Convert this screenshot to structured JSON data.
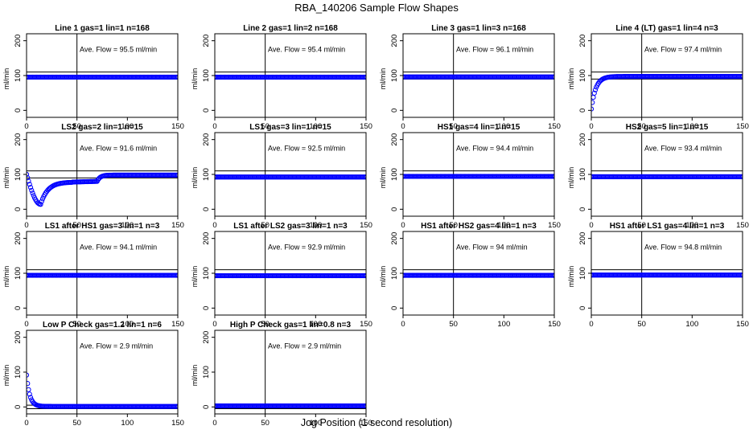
{
  "title": "RBA_140206  Sample Flow Shapes",
  "xlabel": "Jog Position (1 second resolution)",
  "chart_data": [
    {
      "type": "scatter",
      "title": "Line 1 gas=1 lin=1 n=168",
      "ylabel": "ml/min",
      "annotation": "Ave. Flow =  95.5  ml/min",
      "xlim": [
        0,
        150
      ],
      "ylim": [
        -20,
        220
      ],
      "xticks": [
        0,
        50,
        100,
        150
      ],
      "yticks": [
        0,
        100,
        200
      ],
      "vline": 50,
      "hlines": [
        90,
        110
      ],
      "shape": "flat",
      "level": 95.5
    },
    {
      "type": "scatter",
      "title": "Line 2 gas=1 lin=2 n=168",
      "ylabel": "ml/min",
      "annotation": "Ave. Flow =  95.4  ml/min",
      "xlim": [
        0,
        150
      ],
      "ylim": [
        -20,
        220
      ],
      "xticks": [
        0,
        50,
        100,
        150
      ],
      "yticks": [
        0,
        100,
        200
      ],
      "vline": 50,
      "hlines": [
        90,
        110
      ],
      "shape": "flat",
      "level": 95.4
    },
    {
      "type": "scatter",
      "title": "Line 3 gas=1 lin=3 n=168",
      "ylabel": "ml/min",
      "annotation": "Ave. Flow =  96.1  ml/min",
      "xlim": [
        0,
        150
      ],
      "ylim": [
        -20,
        220
      ],
      "xticks": [
        0,
        50,
        100,
        150
      ],
      "yticks": [
        0,
        100,
        200
      ],
      "vline": 50,
      "hlines": [
        90,
        110
      ],
      "shape": "flat",
      "level": 96.1
    },
    {
      "type": "scatter",
      "title": "Line 4 (LT) gas=1 lin=4 n=3",
      "ylabel": "ml/min",
      "annotation": "Ave. Flow =  97.4  ml/min",
      "xlim": [
        0,
        150
      ],
      "ylim": [
        -20,
        220
      ],
      "xticks": [
        0,
        50,
        100,
        150
      ],
      "yticks": [
        0,
        100,
        200
      ],
      "vline": 50,
      "hlines": [
        90,
        110
      ],
      "shape": "rise",
      "level": 97.4
    },
    {
      "type": "scatter",
      "title": "LS2 gas=2 lin=1 n=15",
      "ylabel": "ml/min",
      "annotation": "Ave. Flow =  91.6  ml/min",
      "xlim": [
        0,
        150
      ],
      "ylim": [
        -20,
        220
      ],
      "xticks": [
        0,
        50,
        100,
        150
      ],
      "yticks": [
        0,
        100,
        200
      ],
      "vline": 50,
      "hlines": [
        90,
        110
      ],
      "shape": "dip",
      "level": 91.6
    },
    {
      "type": "scatter",
      "title": "LS1 gas=3 lin=1 n=15",
      "ylabel": "ml/min",
      "annotation": "Ave. Flow =  92.5  ml/min",
      "xlim": [
        0,
        150
      ],
      "ylim": [
        -20,
        220
      ],
      "xticks": [
        0,
        50,
        100,
        150
      ],
      "yticks": [
        0,
        100,
        200
      ],
      "vline": 50,
      "hlines": [
        90,
        110
      ],
      "shape": "flat",
      "level": 92.5
    },
    {
      "type": "scatter",
      "title": "HS1 gas=4 lin=1 n=15",
      "ylabel": "ml/min",
      "annotation": "Ave. Flow =  94.4  ml/min",
      "xlim": [
        0,
        150
      ],
      "ylim": [
        -20,
        220
      ],
      "xticks": [
        0,
        50,
        100,
        150
      ],
      "yticks": [
        0,
        100,
        200
      ],
      "vline": 50,
      "hlines": [
        90,
        110
      ],
      "shape": "flat",
      "level": 94.4
    },
    {
      "type": "scatter",
      "title": "HS2 gas=5 lin=1 n=15",
      "ylabel": "ml/min",
      "annotation": "Ave. Flow =  93.4  ml/min",
      "xlim": [
        0,
        150
      ],
      "ylim": [
        -20,
        220
      ],
      "xticks": [
        0,
        50,
        100,
        150
      ],
      "yticks": [
        0,
        100,
        200
      ],
      "vline": 50,
      "hlines": [
        90,
        110
      ],
      "shape": "flat",
      "level": 93.4
    },
    {
      "type": "scatter",
      "title": "LS1 after HS1 gas=3 lin=1 n=3",
      "ylabel": "ml/min",
      "annotation": "Ave. Flow =  94.1  ml/min",
      "xlim": [
        0,
        150
      ],
      "ylim": [
        -20,
        220
      ],
      "xticks": [
        0,
        50,
        100,
        150
      ],
      "yticks": [
        0,
        100,
        200
      ],
      "vline": 50,
      "hlines": [
        90,
        110
      ],
      "shape": "flat",
      "level": 94.1
    },
    {
      "type": "scatter",
      "title": "LS1 after LS2 gas=3 lin=1 n=3",
      "ylabel": "ml/min",
      "annotation": "Ave. Flow =  92.9  ml/min",
      "xlim": [
        0,
        150
      ],
      "ylim": [
        -20,
        220
      ],
      "xticks": [
        0,
        50,
        100,
        150
      ],
      "yticks": [
        0,
        100,
        200
      ],
      "vline": 50,
      "hlines": [
        90,
        110
      ],
      "shape": "flat",
      "level": 92.9
    },
    {
      "type": "scatter",
      "title": "HS1 after HS2 gas=4 lin=1 n=3",
      "ylabel": "ml/min",
      "annotation": "Ave. Flow =  94  ml/min",
      "xlim": [
        0,
        150
      ],
      "ylim": [
        -20,
        220
      ],
      "xticks": [
        0,
        50,
        100,
        150
      ],
      "yticks": [
        0,
        100,
        200
      ],
      "vline": 50,
      "hlines": [
        90,
        110
      ],
      "shape": "flat",
      "level": 94.0
    },
    {
      "type": "scatter",
      "title": "HS1 after LS1 gas=4 lin=1 n=3",
      "ylabel": "ml/min",
      "annotation": "Ave. Flow =  94.8  ml/min",
      "xlim": [
        0,
        150
      ],
      "ylim": [
        -20,
        220
      ],
      "xticks": [
        0,
        50,
        100,
        150
      ],
      "yticks": [
        0,
        100,
        200
      ],
      "vline": 50,
      "hlines": [
        90,
        110
      ],
      "shape": "flat",
      "level": 94.8
    },
    {
      "type": "scatter",
      "title": "Low P Check gas=1.2 lin=1 n=6",
      "ylabel": "ml/min",
      "annotation": "Ave. Flow =  2.9  ml/min",
      "xlim": [
        0,
        150
      ],
      "ylim": [
        -20,
        220
      ],
      "xticks": [
        0,
        50,
        100,
        150
      ],
      "yticks": [
        0,
        100,
        200
      ],
      "vline": 50,
      "hlines": [
        -5,
        5
      ],
      "shape": "decay",
      "level": 2.9
    },
    {
      "type": "scatter",
      "title": "High P Check gas=1 lin=0.8 n=3",
      "ylabel": "ml/min",
      "annotation": "Ave. Flow =  2.9  ml/min",
      "xlim": [
        0,
        150
      ],
      "ylim": [
        -20,
        220
      ],
      "xticks": [
        0,
        50,
        100,
        150
      ],
      "yticks": [
        0,
        100,
        200
      ],
      "vline": 50,
      "hlines": [
        -5,
        5
      ],
      "shape": "flat",
      "level": 2.9
    }
  ],
  "style": {
    "point_color": "#0000ff",
    "line_color": "#000000"
  }
}
